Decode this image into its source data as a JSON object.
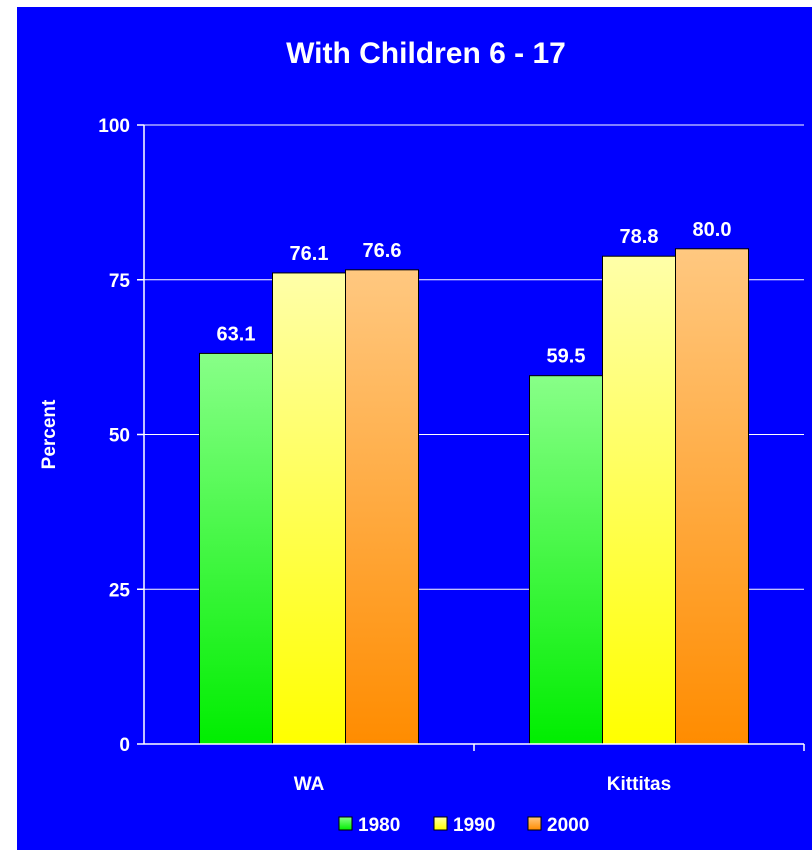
{
  "chart_data": {
    "type": "bar",
    "title": "With Children 6 - 17",
    "ylabel": "Percent",
    "xlabel": "",
    "ylim": [
      0,
      100
    ],
    "yticks": [
      0,
      25,
      50,
      75,
      100
    ],
    "categories": [
      "WA",
      "Kittitas"
    ],
    "series": [
      {
        "name": "1980",
        "values": [
          63.1,
          59.5
        ],
        "labels": [
          "63.1",
          "59.5"
        ],
        "color_top": "#88ff88",
        "color_bottom": "#00ee00"
      },
      {
        "name": "1990",
        "values": [
          76.1,
          78.8
        ],
        "labels": [
          "76.1",
          "78.8"
        ],
        "color_top": "#ffffa8",
        "color_bottom": "#ffff00"
      },
      {
        "name": "2000",
        "values": [
          76.6,
          80.0
        ],
        "labels": [
          "76.6",
          "80.0"
        ],
        "color_top": "#ffc880",
        "color_bottom": "#ff8c00"
      }
    ],
    "grid": true,
    "legend_position": "bottom",
    "background_color": "#0000ff",
    "text_color": "#ffffff"
  }
}
